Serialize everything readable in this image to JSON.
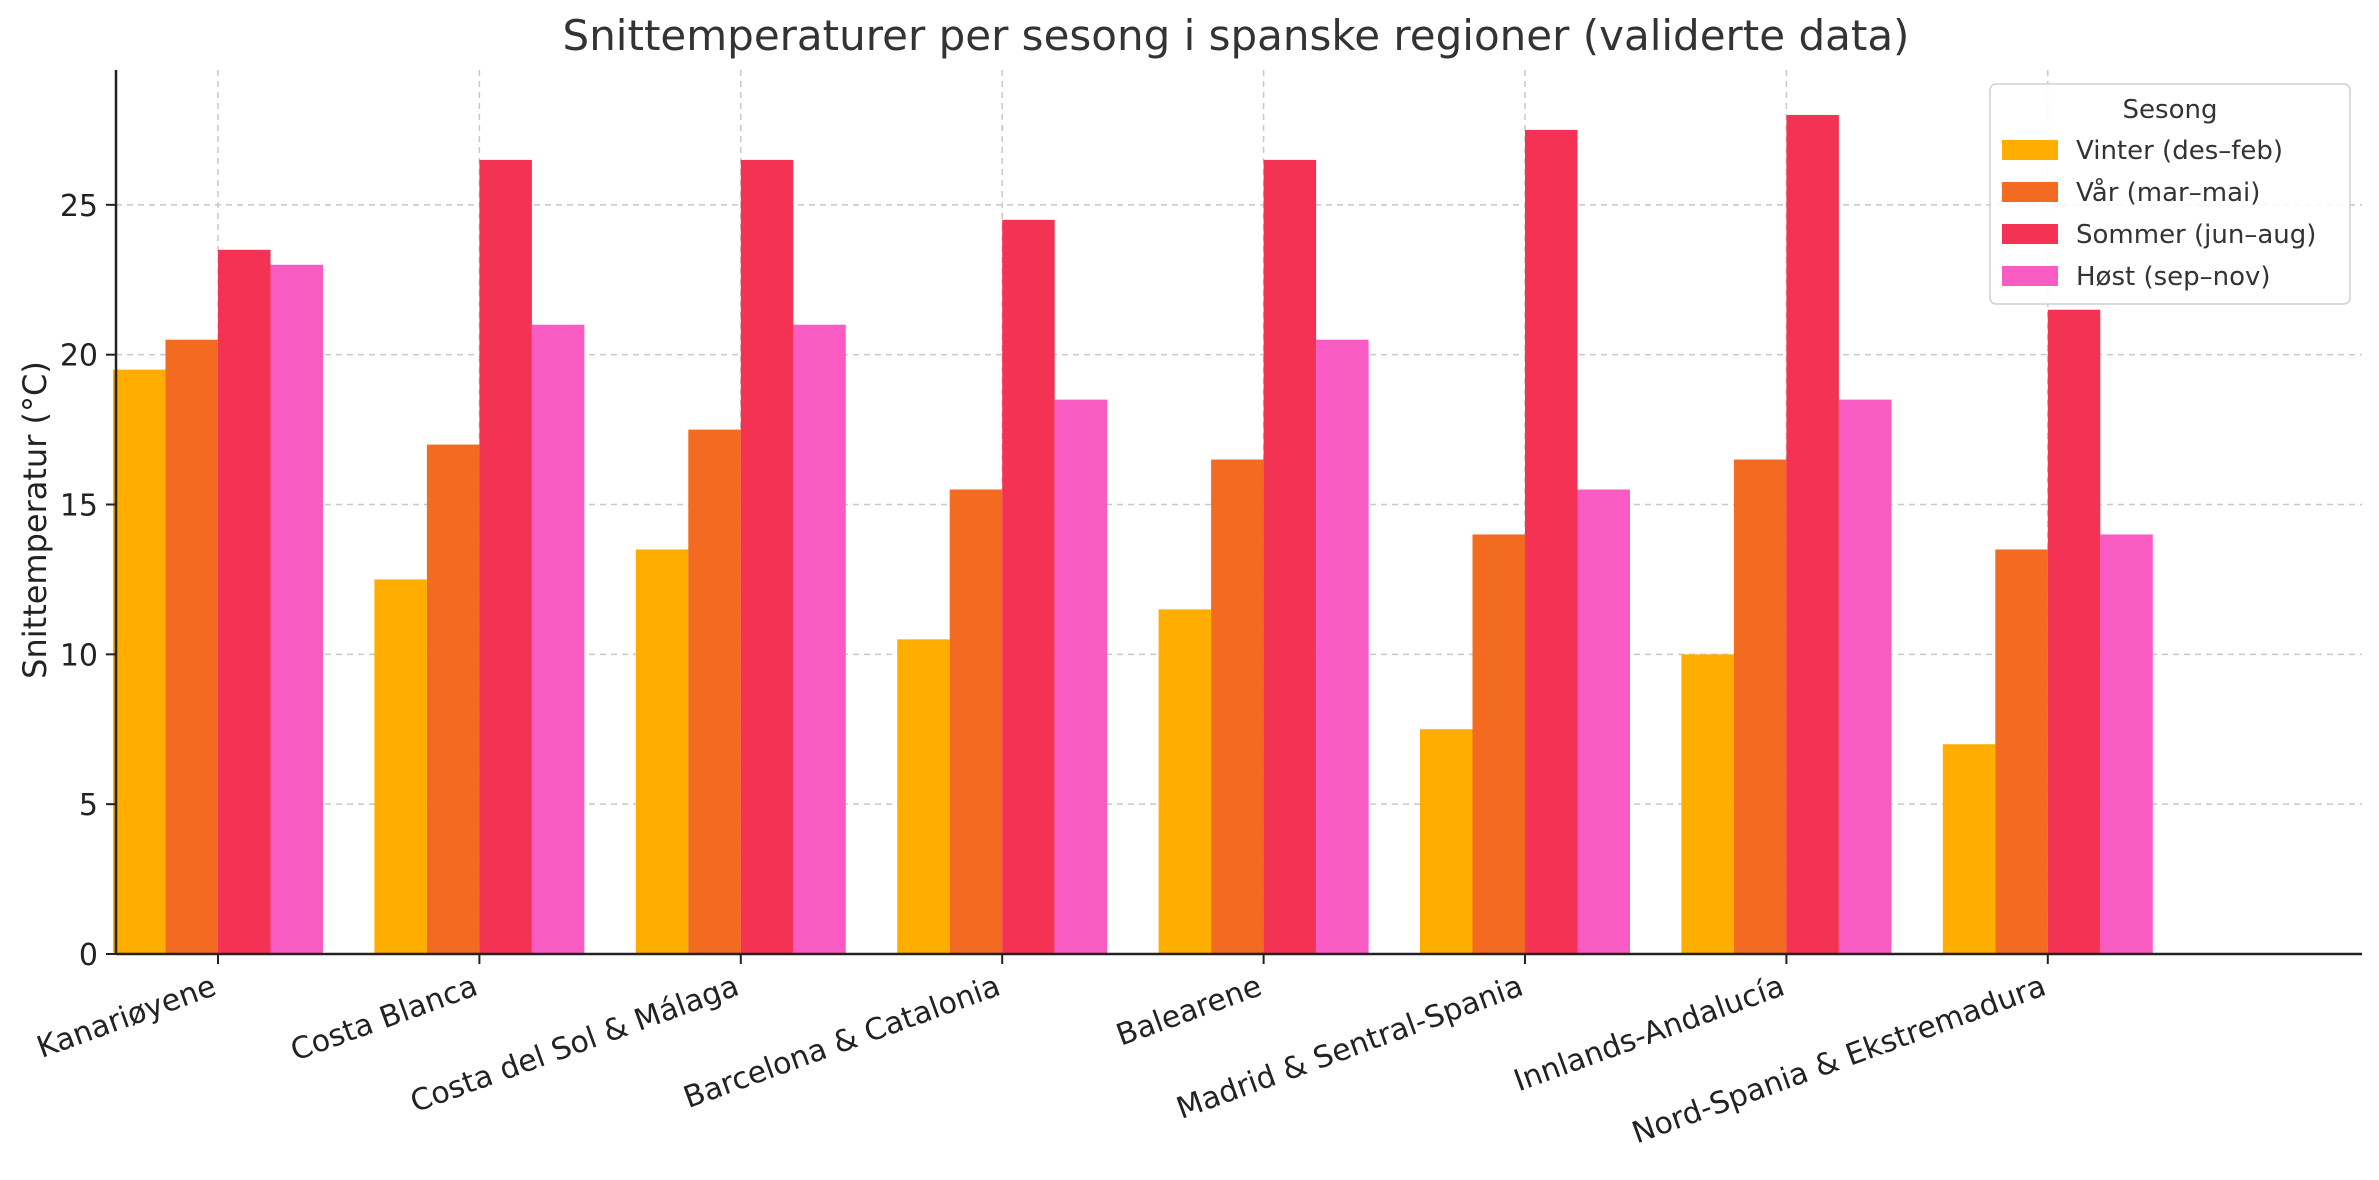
{
  "chart_data": {
    "type": "bar",
    "title": "Snittemperaturer per sesong i spanske regioner (validerte data)",
    "xlabel": "",
    "ylabel": "Snittemperatur (°C)",
    "ylim": [
      0,
      29.5
    ],
    "yticks": [
      0,
      5,
      10,
      15,
      20,
      25
    ],
    "grid": true,
    "legend": {
      "title": "Sesong",
      "position": "top-right"
    },
    "categories": [
      "Kanariøyene",
      "Costa Blanca",
      "Costa del Sol & Málaga",
      "Barcelona & Catalonia",
      "Balearene",
      "Madrid & Sentral-Spania",
      "Innlands-Andalucía",
      "Nord-Spania & Ekstremadura"
    ],
    "series": [
      {
        "name": "Vinter (des–feb)",
        "color": "#FFAE00",
        "values": [
          19.5,
          12.5,
          13.5,
          10.5,
          11.5,
          7.5,
          10.0,
          7.0
        ]
      },
      {
        "name": "Vår (mar–mai)",
        "color": "#F26B21",
        "values": [
          20.5,
          17.0,
          17.5,
          15.5,
          16.5,
          14.0,
          16.5,
          13.5
        ]
      },
      {
        "name": "Sommer (jun–aug)",
        "color": "#F43254",
        "values": [
          23.5,
          26.5,
          26.5,
          24.5,
          26.5,
          27.5,
          28.0,
          21.5
        ]
      },
      {
        "name": "Høst (sep–nov)",
        "color": "#F85BC2",
        "values": [
          23.0,
          21.0,
          21.0,
          18.5,
          20.5,
          15.5,
          18.5,
          14.0
        ]
      }
    ]
  }
}
